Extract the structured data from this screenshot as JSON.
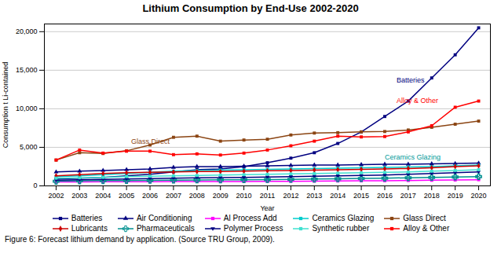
{
  "chart_data": {
    "type": "line",
    "title": "Lithium Consumption by End-Use 2002-2020",
    "xlabel": "Year",
    "ylabel": "Consumption t Li-contained",
    "x": [
      2002,
      2003,
      2004,
      2005,
      2006,
      2007,
      2008,
      2009,
      2010,
      2011,
      2012,
      2013,
      2014,
      2015,
      2016,
      2017,
      2018,
      2019,
      2020
    ],
    "series": [
      {
        "name": "Batteries",
        "color": "#000080",
        "marker": "square",
        "values": [
          900,
          1000,
          1100,
          1300,
          1500,
          1800,
          2100,
          2200,
          2500,
          3000,
          3600,
          4300,
          5500,
          7000,
          9000,
          11000,
          14000,
          17000,
          20500
        ]
      },
      {
        "name": "Air Conditioning",
        "color": "#000080",
        "marker": "triangle-up",
        "values": [
          1800,
          1900,
          2000,
          2100,
          2200,
          2400,
          2500,
          2500,
          2550,
          2600,
          2650,
          2700,
          2700,
          2750,
          2800,
          2800,
          2850,
          2900,
          2950
        ]
      },
      {
        "name": "Al Process Add",
        "color": "#FF00FF",
        "marker": "square",
        "values": [
          500,
          520,
          530,
          540,
          540,
          550,
          560,
          560,
          570,
          580,
          590,
          610,
          630,
          650,
          670,
          700,
          730,
          760,
          800
        ]
      },
      {
        "name": "Ceramics Glazing",
        "color": "#00CCCC",
        "marker": "square",
        "values": [
          1200,
          1300,
          1450,
          1600,
          1750,
          1900,
          2000,
          2050,
          2100,
          2150,
          2200,
          2250,
          2300,
          2350,
          2400,
          2450,
          2500,
          2600,
          2700
        ]
      },
      {
        "name": "Glass Direct",
        "color": "#8B4513",
        "marker": "square",
        "values": [
          3350,
          4300,
          4200,
          4550,
          5300,
          6300,
          6450,
          5800,
          5950,
          6050,
          6600,
          6850,
          6900,
          7000,
          7050,
          7250,
          7600,
          8000,
          8400
        ]
      },
      {
        "name": "Lubricants",
        "color": "#CC0000",
        "marker": "diamond",
        "values": [
          1300,
          1450,
          1600,
          1700,
          1750,
          1800,
          1850,
          1850,
          1900,
          1950,
          2000,
          2050,
          2100,
          2150,
          2200,
          2250,
          2350,
          2500,
          2600
        ]
      },
      {
        "name": "Pharmaceuticals",
        "color": "#009090",
        "marker": "plus",
        "values": [
          600,
          650,
          680,
          700,
          720,
          750,
          770,
          780,
          800,
          820,
          850,
          880,
          920,
          960,
          1000,
          1050,
          1100,
          1150,
          1200
        ]
      },
      {
        "name": "Polymer Process",
        "color": "#000080",
        "marker": "triangle-down",
        "values": [
          750,
          800,
          850,
          900,
          950,
          1000,
          1050,
          1080,
          1100,
          1150,
          1200,
          1250,
          1300,
          1350,
          1400,
          1500,
          1600,
          1700,
          1800
        ]
      },
      {
        "name": "Synthetic rubber",
        "color": "#40E0D0",
        "marker": "square",
        "values": [
          1000,
          1050,
          1100,
          1200,
          1250,
          1300,
          1350,
          1400,
          1450,
          1500,
          1550,
          1600,
          1650,
          1700,
          1750,
          1800,
          1900,
          2000,
          2100
        ]
      },
      {
        "name": "Alloy & Other",
        "color": "#FF0000",
        "marker": "square",
        "values": [
          3350,
          4650,
          4250,
          4500,
          4500,
          4050,
          4150,
          4000,
          4250,
          4650,
          5200,
          5800,
          6450,
          6350,
          6400,
          7000,
          7800,
          10200,
          11000
        ]
      }
    ],
    "annotations": [
      {
        "text": "Batteries",
        "x": 2016.5,
        "y": 13400,
        "color": "#000080"
      },
      {
        "text": "Alloy & Other",
        "x": 2016.5,
        "y": 10800,
        "color": "#FF0000"
      },
      {
        "text": "Glass Direct",
        "x": 2005.2,
        "y": 5500,
        "color": "#8B4513"
      },
      {
        "text": "Ceramics Glazing",
        "x": 2016.0,
        "y": 3450,
        "color": "#009999"
      }
    ],
    "xlim": [
      2001.5,
      2020.5
    ],
    "xticks": [
      2002,
      2003,
      2004,
      2005,
      2006,
      2007,
      2008,
      2009,
      2010,
      2011,
      2012,
      2013,
      2014,
      2015,
      2016,
      2017,
      2018,
      2019,
      2020
    ],
    "ylim": [
      0,
      21000
    ],
    "yticks": [
      0,
      {
        "value": 5000,
        "label": "5,000"
      },
      {
        "value": 10000,
        "label": "10,000"
      },
      {
        "value": 15000,
        "label": "15,000"
      },
      {
        "value": 20000,
        "label": "20,000"
      }
    ],
    "grid": true,
    "legend": "bottom",
    "caption": "Figure 6: Forecast lithium demand by application. (Source TRU Group, 2009)."
  }
}
